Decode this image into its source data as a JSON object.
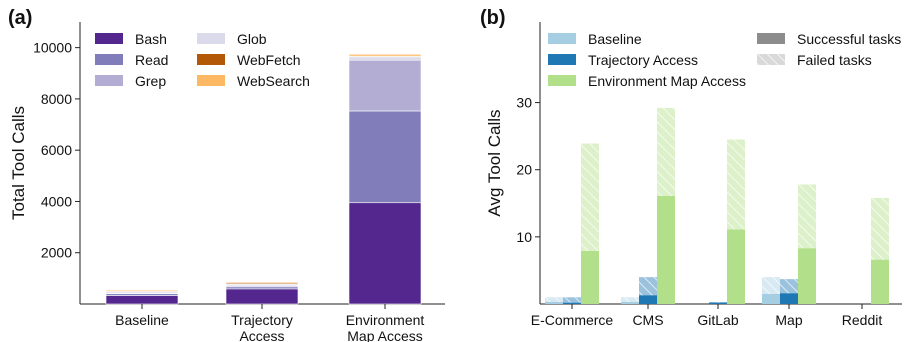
{
  "chart_data": [
    {
      "panel_label": "(a)",
      "type": "bar",
      "stacked": true,
      "categories": [
        "Baseline",
        "Trajectory Access",
        "Environment Map Access"
      ],
      "category_lines": [
        [
          "Baseline"
        ],
        [
          "Trajectory",
          "Access"
        ],
        [
          "Environment",
          "Map Access"
        ]
      ],
      "ylabel": "Total Tool Calls",
      "ylim": [
        0,
        11000
      ],
      "yticks": [
        "2000",
        "4000",
        "6000",
        "8000",
        "10000"
      ],
      "ytick_values": [
        2000,
        4000,
        6000,
        8000,
        10000
      ],
      "legend_position": "top-left",
      "series": [
        {
          "name": "Bash",
          "color": "#54278f",
          "values": [
            330,
            590,
            3950
          ]
        },
        {
          "name": "Read",
          "color": "#807dba",
          "values": [
            70,
            80,
            3580
          ]
        },
        {
          "name": "Grep",
          "color": "#b3acd3",
          "values": [
            30,
            40,
            1980
          ]
        },
        {
          "name": "Glob",
          "color": "#dadaeb",
          "values": [
            50,
            60,
            130
          ]
        },
        {
          "name": "WebFetch",
          "color": "#b35806",
          "values": [
            30,
            40,
            30
          ]
        },
        {
          "name": "WebSearch",
          "color": "#fdb863",
          "values": [
            40,
            40,
            70
          ]
        }
      ]
    },
    {
      "panel_label": "(b)",
      "type": "bar",
      "stacked": true,
      "categories": [
        "E-Commerce",
        "CMS",
        "GitLab",
        "Map",
        "Reddit"
      ],
      "ylabel": "Avg Tool Calls",
      "ylim": [
        0,
        42
      ],
      "yticks": [
        "10",
        "20",
        "30"
      ],
      "ytick_values": [
        10,
        20,
        30
      ],
      "legend_position": "top",
      "series": [
        {
          "name": "Baseline",
          "color": "#a6cee3",
          "successful": [
            0.3,
            0.3,
            0,
            1.5,
            0
          ],
          "failed": [
            0.7,
            0.7,
            0,
            2.5,
            0
          ]
        },
        {
          "name": "Trajectory Access",
          "color": "#1f78b4",
          "successful": [
            0.2,
            1.3,
            0.2,
            1.6,
            0
          ],
          "failed": [
            0.8,
            2.7,
            0.1,
            2.1,
            0
          ]
        },
        {
          "name": "Environment Map Access",
          "color": "#b2df8a",
          "successful": [
            7.9,
            16.1,
            11.1,
            8.3,
            6.6
          ],
          "failed": [
            16.0,
            13.1,
            13.4,
            9.5,
            9.2
          ]
        }
      ],
      "legend_extra": [
        {
          "name": "Successful tasks",
          "color": "#8c8c8c"
        },
        {
          "name": "Failed tasks",
          "color": "#d9d9d9",
          "hatched": true
        }
      ]
    }
  ]
}
